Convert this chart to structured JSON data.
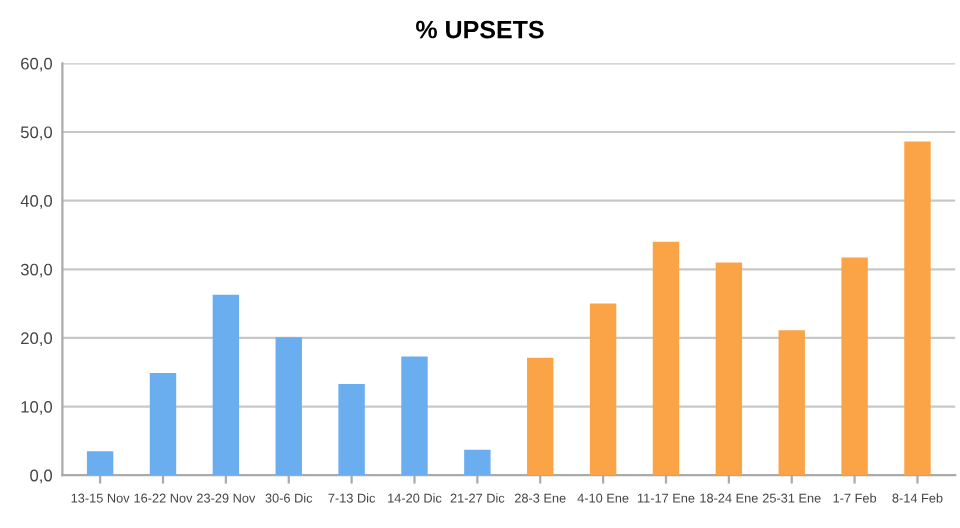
{
  "chart_data": {
    "type": "bar",
    "title": "% UPSETS",
    "categories": [
      "13-15 Nov",
      "16-22 Nov",
      "23-29 Nov",
      "30-6 Dic",
      "7-13 Dic",
      "14-20 Dic",
      "21-27 Dic",
      "28-3 Ene",
      "4-10 Ene",
      "11-17 Ene",
      "18-24 Ene",
      "25-31 Ene",
      "1-7 Feb",
      "8-14 Feb"
    ],
    "values": [
      3.5,
      14.9,
      26.3,
      20.1,
      13.3,
      17.3,
      3.7,
      17.1,
      25.0,
      34.0,
      31.0,
      21.1,
      31.7,
      48.6
    ],
    "colors": [
      "#6aaef0",
      "#6aaef0",
      "#6aaef0",
      "#6aaef0",
      "#6aaef0",
      "#6aaef0",
      "#6aaef0",
      "#fba447",
      "#fba447",
      "#fba447",
      "#fba447",
      "#fba447",
      "#fba447",
      "#fba447"
    ],
    "ylim": [
      0,
      60
    ],
    "yticks": [
      {
        "value": 0,
        "label": "0,0"
      },
      {
        "value": 10,
        "label": "10,0"
      },
      {
        "value": 20,
        "label": "20,0"
      },
      {
        "value": 30,
        "label": "30,0"
      },
      {
        "value": 40,
        "label": "40,0"
      },
      {
        "value": 50,
        "label": "50,0"
      },
      {
        "value": 60,
        "label": "60,0"
      }
    ],
    "grid": "y"
  }
}
